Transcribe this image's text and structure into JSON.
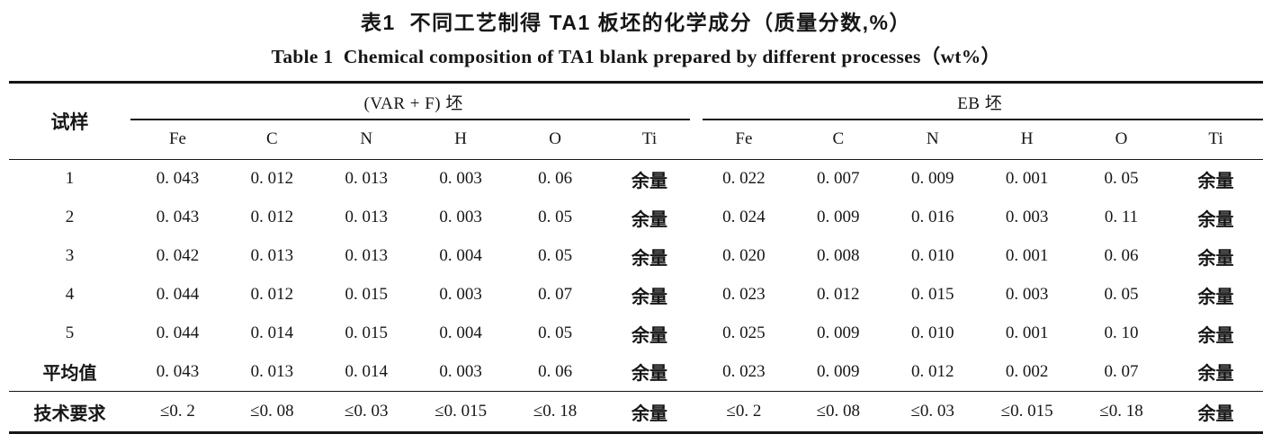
{
  "page": {
    "title_zh": "表1  不同工艺制得 TA1 板坯的化学成分（质量分数,%）",
    "title_en": "Table 1  Chemical composition of TA1 blank prepared by different processes（wt%）"
  },
  "table": {
    "sample_header": "试样",
    "groups": [
      {
        "label": "(VAR + F) 坯",
        "columns": [
          "Fe",
          "C",
          "N",
          "H",
          "O",
          "Ti"
        ]
      },
      {
        "label": "EB 坯",
        "columns": [
          "Fe",
          "C",
          "N",
          "H",
          "O",
          "Ti"
        ]
      }
    ],
    "rows": [
      {
        "sample": "1",
        "values": [
          "0. 043",
          "0. 012",
          "0. 013",
          "0. 003",
          "0. 06",
          "余量",
          "0. 022",
          "0. 007",
          "0. 009",
          "0. 001",
          "0. 05",
          "余量"
        ]
      },
      {
        "sample": "2",
        "values": [
          "0. 043",
          "0. 012",
          "0. 013",
          "0. 003",
          "0. 05",
          "余量",
          "0. 024",
          "0. 009",
          "0. 016",
          "0. 003",
          "0. 11",
          "余量"
        ]
      },
      {
        "sample": "3",
        "values": [
          "0. 042",
          "0. 013",
          "0. 013",
          "0. 004",
          "0. 05",
          "余量",
          "0. 020",
          "0. 008",
          "0. 010",
          "0. 001",
          "0. 06",
          "余量"
        ]
      },
      {
        "sample": "4",
        "values": [
          "0. 044",
          "0. 012",
          "0. 015",
          "0. 003",
          "0. 07",
          "余量",
          "0. 023",
          "0. 012",
          "0. 015",
          "0. 003",
          "0. 05",
          "余量"
        ]
      },
      {
        "sample": "5",
        "values": [
          "0. 044",
          "0. 014",
          "0. 015",
          "0. 004",
          "0. 05",
          "余量",
          "0. 025",
          "0. 009",
          "0. 010",
          "0. 001",
          "0. 10",
          "余量"
        ]
      },
      {
        "sample": "平均值",
        "values": [
          "0. 043",
          "0. 013",
          "0. 014",
          "0. 003",
          "0. 06",
          "余量",
          "0. 023",
          "0. 009",
          "0. 012",
          "0. 002",
          "0. 07",
          "余量"
        ]
      },
      {
        "sample": "技术要求",
        "values": [
          "≤0. 2",
          "≤0. 08",
          "≤0. 03",
          "≤0. 015",
          "≤0. 18",
          "余量",
          "≤0. 2",
          "≤0. 08",
          "≤0. 03",
          "≤0. 015",
          "≤0. 18",
          "余量"
        ]
      }
    ]
  },
  "colors": {
    "background": "#ffffff",
    "text": "#161616",
    "rule": "#161616"
  }
}
